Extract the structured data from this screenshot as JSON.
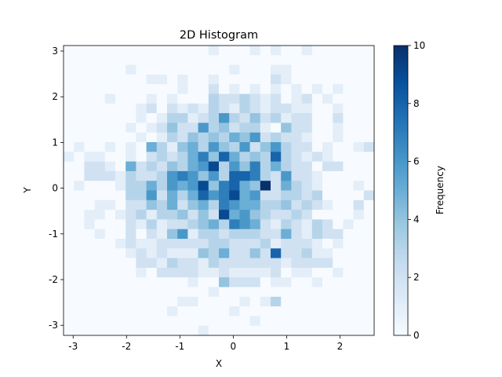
{
  "chart_data": {
    "type": "hist2d",
    "title": "2D Histogram",
    "x_label": "X",
    "y_label": "Y",
    "colorbar_label": "Frequency",
    "cmap": "Blues",
    "xlim": [
      -3.18,
      2.64
    ],
    "ylim": [
      -3.22,
      3.12
    ],
    "clim": [
      0,
      10
    ],
    "xticks": [
      -3,
      -2,
      -1,
      0,
      1,
      2
    ],
    "yticks": [
      -3,
      -2,
      -1,
      0,
      1,
      2,
      3
    ],
    "cticks": [
      0,
      2,
      4,
      6,
      8,
      10
    ],
    "x_edges": [
      -3.18,
      -2.986,
      -2.792,
      -2.598,
      -2.404,
      -2.21,
      -2.016,
      -1.822,
      -1.628,
      -1.434,
      -1.24,
      -1.046,
      -0.852,
      -0.658,
      -0.464,
      -0.27,
      -0.076,
      0.118,
      0.312,
      0.506,
      0.7,
      0.894,
      1.088,
      1.282,
      1.476,
      1.67,
      1.864,
      2.058,
      2.252,
      2.446,
      2.64
    ],
    "y_edges": [
      3.12,
      2.909,
      2.697,
      2.486,
      2.275,
      2.063,
      1.852,
      1.641,
      1.429,
      1.218,
      1.007,
      0.795,
      0.584,
      0.373,
      0.161,
      -0.05,
      -0.261,
      -0.473,
      -0.684,
      -0.895,
      -1.107,
      -1.318,
      -1.529,
      -1.741,
      -1.952,
      -2.163,
      -2.375,
      -2.586,
      -2.797,
      -3.009,
      -3.22
    ],
    "counts": [
      [
        0,
        0,
        0,
        0,
        0,
        0,
        0,
        0,
        0,
        0,
        0,
        0,
        0,
        0,
        1,
        0,
        0,
        0,
        1,
        0,
        1,
        0,
        0,
        1,
        0,
        0,
        0,
        0,
        0,
        0
      ],
      [
        0,
        0,
        0,
        0,
        0,
        0,
        0,
        0,
        0,
        0,
        0,
        0,
        0,
        0,
        0,
        0,
        0,
        0,
        0,
        0,
        0,
        0,
        0,
        0,
        0,
        0,
        0,
        0,
        0,
        0
      ],
      [
        0,
        0,
        0,
        0,
        0,
        0,
        1,
        0,
        0,
        0,
        0,
        0,
        0,
        0,
        0,
        0,
        1,
        0,
        0,
        0,
        1,
        1,
        0,
        0,
        0,
        0,
        0,
        0,
        0,
        0
      ],
      [
        0,
        0,
        0,
        0,
        0,
        0,
        0,
        0,
        1,
        1,
        0,
        1,
        0,
        0,
        1,
        0,
        0,
        0,
        0,
        0,
        2,
        1,
        0,
        0,
        0,
        0,
        0,
        0,
        0,
        0
      ],
      [
        0,
        0,
        0,
        0,
        0,
        0,
        0,
        0,
        0,
        0,
        0,
        1,
        0,
        0,
        2,
        0,
        1,
        0,
        1,
        0,
        1,
        0,
        1,
        0,
        1,
        0,
        1,
        0,
        0,
        0
      ],
      [
        0,
        0,
        0,
        0,
        1,
        0,
        0,
        0,
        1,
        0,
        1,
        0,
        0,
        0,
        3,
        2,
        2,
        3,
        2,
        1,
        2,
        0,
        1,
        2,
        0,
        1,
        0,
        0,
        0,
        0
      ],
      [
        0,
        0,
        0,
        0,
        0,
        0,
        0,
        1,
        2,
        0,
        2,
        1,
        2,
        1,
        3,
        2,
        1,
        3,
        2,
        1,
        2,
        2,
        1,
        1,
        0,
        0,
        1,
        0,
        0,
        0
      ],
      [
        0,
        0,
        0,
        0,
        0,
        0,
        0,
        1,
        0,
        1,
        3,
        3,
        1,
        2,
        3,
        6,
        3,
        2,
        4,
        2,
        3,
        1,
        2,
        2,
        0,
        0,
        2,
        0,
        0,
        0
      ],
      [
        0,
        0,
        0,
        0,
        0,
        0,
        1,
        0,
        1,
        2,
        4,
        2,
        2,
        6,
        3,
        4,
        2,
        3,
        3,
        1,
        0,
        4,
        2,
        2,
        0,
        0,
        1,
        0,
        0,
        0
      ],
      [
        0,
        0,
        0,
        0,
        0,
        0,
        0,
        1,
        0,
        1,
        3,
        2,
        4,
        3,
        4,
        3,
        5,
        4,
        6,
        2,
        3,
        2,
        2,
        1,
        0,
        0,
        1,
        0,
        0,
        0
      ],
      [
        0,
        1,
        0,
        0,
        1,
        0,
        1,
        0,
        5,
        3,
        1,
        4,
        5,
        3,
        6,
        4,
        3,
        6,
        2,
        4,
        6,
        3,
        2,
        2,
        0,
        1,
        0,
        0,
        1,
        2
      ],
      [
        1,
        0,
        1,
        1,
        0,
        0,
        1,
        0,
        2,
        3,
        2,
        3,
        5,
        7,
        4,
        8,
        5,
        3,
        4,
        3,
        8,
        3,
        2,
        1,
        2,
        1,
        0,
        0,
        0,
        0
      ],
      [
        0,
        0,
        2,
        2,
        1,
        0,
        5,
        2,
        3,
        2,
        4,
        3,
        5,
        6,
        9,
        3,
        6,
        4,
        7,
        3,
        5,
        3,
        2,
        2,
        0,
        2,
        2,
        0,
        0,
        0
      ],
      [
        0,
        0,
        2,
        2,
        2,
        1,
        3,
        2,
        2,
        3,
        6,
        7,
        6,
        4,
        6,
        3,
        8,
        8,
        7,
        3,
        2,
        6,
        2,
        2,
        1,
        0,
        0,
        0,
        0,
        0
      ],
      [
        0,
        1,
        0,
        0,
        0,
        1,
        3,
        3,
        5,
        3,
        6,
        5,
        6,
        9,
        4,
        7,
        8,
        5,
        4,
        10,
        2,
        5,
        3,
        2,
        1,
        0,
        0,
        0,
        1,
        0
      ],
      [
        0,
        0,
        0,
        0,
        0,
        0,
        3,
        3,
        6,
        2,
        5,
        3,
        5,
        8,
        6,
        7,
        9,
        5,
        6,
        2,
        2,
        3,
        3,
        2,
        3,
        0,
        0,
        0,
        0,
        2
      ],
      [
        0,
        0,
        0,
        1,
        1,
        0,
        2,
        2,
        4,
        3,
        5,
        2,
        4,
        5,
        3,
        7,
        6,
        5,
        5,
        3,
        3,
        4,
        2,
        3,
        2,
        1,
        0,
        0,
        2,
        0
      ],
      [
        0,
        0,
        1,
        1,
        0,
        1,
        2,
        3,
        1,
        3,
        3,
        4,
        2,
        4,
        2,
        9,
        5,
        6,
        4,
        3,
        2,
        2,
        3,
        2,
        0,
        0,
        0,
        0,
        1,
        0
      ],
      [
        0,
        0,
        1,
        0,
        0,
        0,
        2,
        1,
        3,
        1,
        2,
        2,
        3,
        4,
        5,
        3,
        7,
        6,
        5,
        2,
        1,
        3,
        2,
        1,
        3,
        2,
        0,
        1,
        0,
        0
      ],
      [
        0,
        0,
        0,
        1,
        0,
        0,
        2,
        0,
        2,
        1,
        4,
        6,
        1,
        3,
        3,
        2,
        3,
        3,
        3,
        2,
        2,
        5,
        2,
        1,
        3,
        2,
        2,
        0,
        0,
        0
      ],
      [
        0,
        0,
        0,
        0,
        0,
        1,
        2,
        1,
        1,
        2,
        2,
        2,
        2,
        2,
        3,
        3,
        2,
        2,
        2,
        3,
        1,
        2,
        2,
        2,
        1,
        0,
        1,
        0,
        0,
        0
      ],
      [
        0,
        0,
        0,
        0,
        0,
        0,
        1,
        2,
        1,
        2,
        1,
        1,
        1,
        4,
        3,
        5,
        2,
        2,
        4,
        2,
        8,
        2,
        2,
        3,
        1,
        1,
        0,
        0,
        0,
        0
      ],
      [
        0,
        0,
        0,
        0,
        0,
        0,
        0,
        2,
        2,
        1,
        3,
        2,
        2,
        1,
        3,
        2,
        2,
        2,
        2,
        2,
        2,
        1,
        2,
        2,
        2,
        2,
        0,
        0,
        0,
        0
      ],
      [
        0,
        0,
        0,
        0,
        0,
        0,
        0,
        1,
        0,
        2,
        2,
        2,
        2,
        1,
        1,
        2,
        1,
        1,
        1,
        1,
        2,
        0,
        1,
        1,
        0,
        0,
        1,
        0,
        0,
        0
      ],
      [
        0,
        0,
        0,
        0,
        0,
        0,
        0,
        0,
        0,
        0,
        0,
        0,
        1,
        0,
        0,
        4,
        2,
        2,
        2,
        0,
        1,
        1,
        0,
        0,
        1,
        0,
        0,
        0,
        0,
        0
      ],
      [
        0,
        0,
        0,
        0,
        0,
        0,
        0,
        0,
        0,
        0,
        0,
        0,
        0,
        0,
        1,
        0,
        0,
        0,
        0,
        0,
        0,
        0,
        0,
        0,
        0,
        0,
        0,
        0,
        0,
        0
      ],
      [
        0,
        0,
        0,
        0,
        0,
        0,
        0,
        0,
        0,
        0,
        0,
        1,
        1,
        0,
        0,
        0,
        0,
        1,
        0,
        1,
        3,
        0,
        0,
        0,
        0,
        0,
        0,
        0,
        0,
        0
      ],
      [
        0,
        0,
        0,
        0,
        0,
        0,
        0,
        0,
        0,
        0,
        1,
        0,
        0,
        0,
        0,
        0,
        1,
        0,
        0,
        0,
        0,
        0,
        0,
        0,
        0,
        0,
        0,
        0,
        0,
        0
      ],
      [
        0,
        0,
        0,
        0,
        0,
        0,
        0,
        0,
        0,
        0,
        0,
        0,
        0,
        0,
        0,
        0,
        0,
        0,
        1,
        0,
        0,
        0,
        0,
        0,
        0,
        0,
        0,
        0,
        0,
        0
      ],
      [
        0,
        0,
        0,
        0,
        0,
        0,
        0,
        0,
        0,
        0,
        0,
        0,
        0,
        1,
        0,
        0,
        0,
        0,
        0,
        0,
        0,
        0,
        0,
        0,
        0,
        0,
        0,
        0,
        0,
        0
      ]
    ]
  }
}
